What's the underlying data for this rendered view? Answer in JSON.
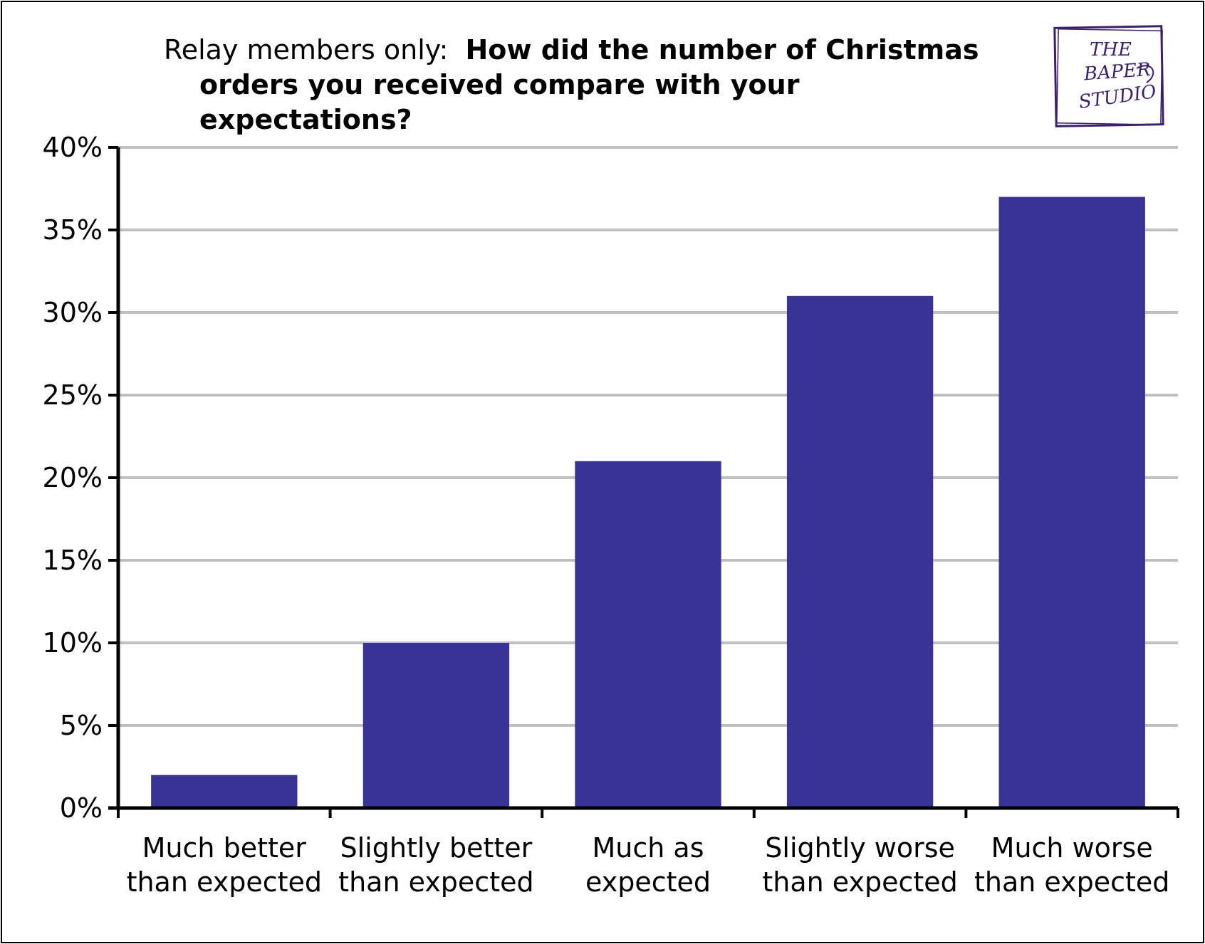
{
  "chart_data": {
    "type": "bar",
    "title_prefix": "Relay members only:",
    "title_question_line1": "How did the number of Christmas",
    "title_question_line2": "orders you received compare with your expectations?",
    "categories": [
      [
        "Much better",
        "than expected"
      ],
      [
        "Slightly better",
        "than expected"
      ],
      [
        "Much as",
        "expected"
      ],
      [
        "Slightly worse",
        "than expected"
      ],
      [
        "Much worse",
        "than expected"
      ]
    ],
    "values": [
      2,
      10,
      21,
      31,
      37
    ],
    "ylim": [
      0,
      40
    ],
    "yticks": [
      0,
      5,
      10,
      15,
      20,
      25,
      30,
      35,
      40
    ],
    "ytick_labels": [
      "0%",
      "5%",
      "10%",
      "15%",
      "20%",
      "25%",
      "30%",
      "35%",
      "40%"
    ],
    "xlabel": "",
    "ylabel": "",
    "grid": true,
    "legend": "none",
    "bar_color": "#383394",
    "grid_color": "#c0c0c0"
  },
  "logo": {
    "text_lines": [
      "THE",
      "BAPER",
      "STUDIO"
    ],
    "color": "#3a1f6e"
  }
}
